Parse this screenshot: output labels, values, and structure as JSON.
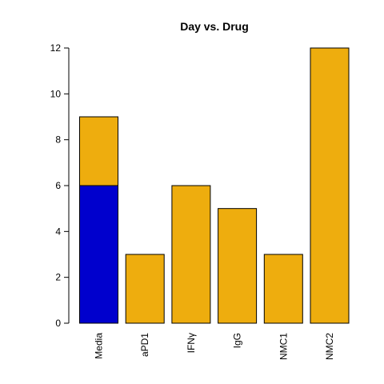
{
  "chart_data": {
    "type": "bar",
    "stacked": true,
    "title": "Day vs. Drug",
    "xlabel": "",
    "ylabel": "",
    "categories": [
      "Media",
      "aPD1",
      "IFNγ",
      "IgG",
      "NMC1",
      "NMC2"
    ],
    "series": [
      {
        "color": "#0000CD",
        "values": [
          6,
          0,
          0,
          0,
          0,
          0
        ]
      },
      {
        "color": "#EEAD0E",
        "values": [
          3,
          3,
          6,
          5,
          3,
          12
        ]
      }
    ],
    "ylim": [
      0,
      12
    ],
    "yticks": [
      0,
      2,
      4,
      6,
      8,
      10,
      12
    ],
    "grid": false,
    "legend": "none"
  }
}
